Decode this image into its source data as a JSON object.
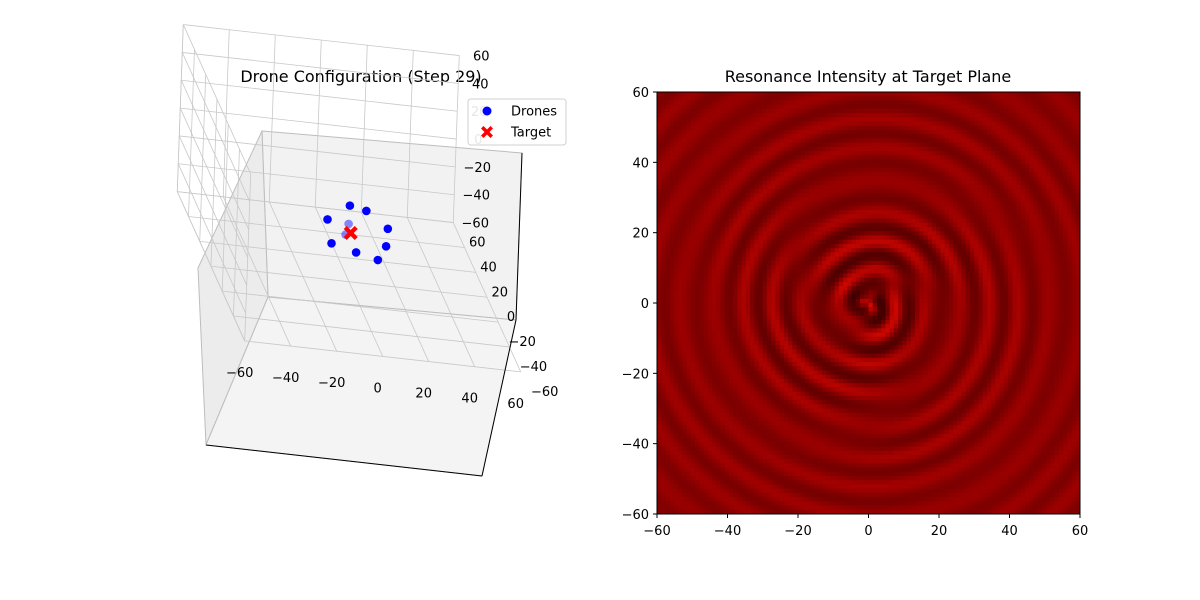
{
  "chart_data": [
    {
      "type": "scatter",
      "title": "Drone Configuration (Step 29)",
      "xlabel": "",
      "ylabel": "",
      "zlabel": "",
      "xlim": [
        -60,
        60
      ],
      "ylim": [
        -60,
        60
      ],
      "zlim": [
        -60,
        60
      ],
      "x_ticks": [
        "−60",
        "−40",
        "−20",
        "0",
        "20",
        "40",
        "60"
      ],
      "y_ticks": [
        "60",
        "40",
        "20",
        "0",
        "−20",
        "−40",
        "−60"
      ],
      "z_ticks": [
        "60",
        "40",
        "20",
        "0",
        "−20",
        "−40",
        "−60"
      ],
      "grid": true,
      "legend": {
        "placement": "upper right",
        "entries": [
          "Drones",
          "Target"
        ]
      },
      "series": [
        {
          "name": "Drones",
          "color": "#0000ff",
          "marker": "circle",
          "points": [
            {
              "x": 0,
              "y": 4,
              "z": -22,
              "depth": "far"
            },
            {
              "x": 0,
              "y": 3,
              "z": -8,
              "depth": "near"
            },
            {
              "x": 8,
              "y": 6,
              "z": -13,
              "depth": "near"
            },
            {
              "x": 16,
              "y": 0,
              "z": -19,
              "depth": "near"
            },
            {
              "x": 15,
              "y": -2,
              "z": -30,
              "depth": "near"
            },
            {
              "x": 9,
              "y": -12,
              "z": -32,
              "depth": "near"
            },
            {
              "x": 0,
              "y": -10,
              "z": -30,
              "depth": "near"
            },
            {
              "x": -10,
              "y": -7,
              "z": -28,
              "depth": "near"
            },
            {
              "x": -10,
              "y": 1,
              "z": -18,
              "depth": "near"
            },
            {
              "x": -3,
              "y": -3,
              "z": -24,
              "depth": "far"
            }
          ]
        },
        {
          "name": "Target",
          "color": "#ff0000",
          "marker": "X",
          "points": [
            {
              "x": 0,
              "y": 0,
              "z": -25
            }
          ]
        }
      ]
    },
    {
      "type": "heatmap",
      "title": "Resonance Intensity at Target Plane",
      "xlabel": "",
      "ylabel": "",
      "xlim": [
        -60,
        60
      ],
      "ylim": [
        -60,
        60
      ],
      "x_ticks": [
        "−60",
        "−40",
        "−20",
        "0",
        "20",
        "40",
        "60"
      ],
      "y_ticks": [
        "60",
        "40",
        "20",
        "0",
        "−20",
        "−40",
        "−60"
      ],
      "colormap": "dark-red",
      "pattern": "concentric interference rings centered at (0, 0)",
      "center": [
        0,
        0
      ],
      "base_color": "#8b0000"
    }
  ]
}
